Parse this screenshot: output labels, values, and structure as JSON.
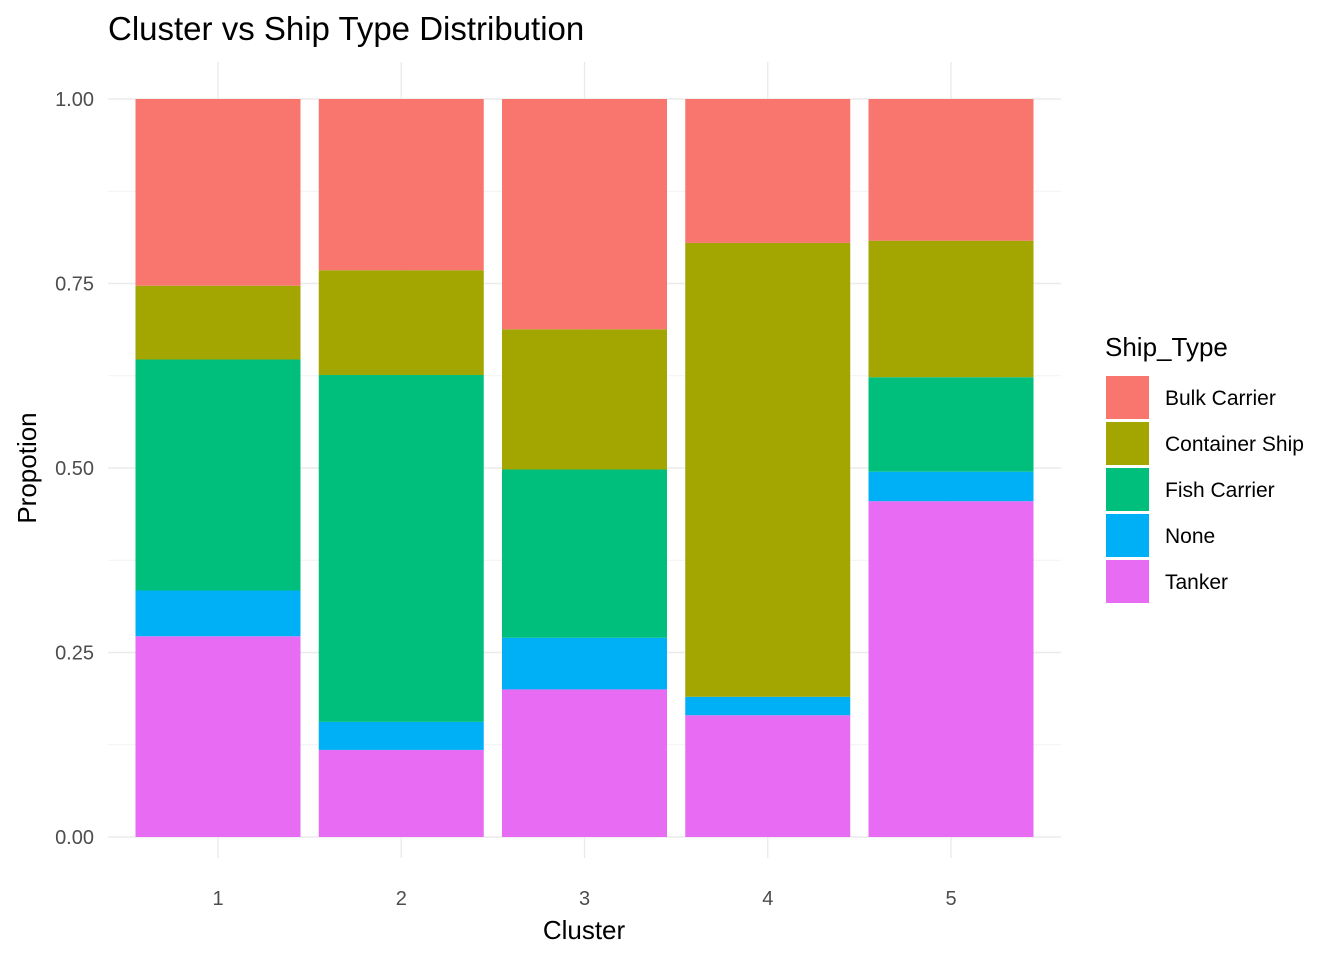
{
  "chart_data": {
    "type": "bar",
    "stacked": true,
    "title": "Cluster vs Ship Type Distribution",
    "xlabel": "Cluster",
    "ylabel": "Propotion",
    "categories": [
      "1",
      "2",
      "3",
      "4",
      "5"
    ],
    "ylim": [
      0,
      1
    ],
    "yticks": [
      "0.00",
      "0.25",
      "0.50",
      "0.75",
      "1.00"
    ],
    "grid": true,
    "legend": {
      "title": "Ship_Type",
      "placement": "right"
    },
    "series": [
      {
        "name": "Tanker",
        "color": "#E76BF3",
        "values": [
          0.272,
          0.118,
          0.2,
          0.165,
          0.455
        ]
      },
      {
        "name": "None",
        "color": "#00B0F6",
        "values": [
          0.062,
          0.038,
          0.07,
          0.025,
          0.04
        ]
      },
      {
        "name": "Fish Carrier",
        "color": "#00BF7D",
        "values": [
          0.313,
          0.47,
          0.228,
          0.0,
          0.128
        ]
      },
      {
        "name": "Container Ship",
        "color": "#A3A500",
        "values": [
          0.1,
          0.142,
          0.19,
          0.615,
          0.185
        ]
      },
      {
        "name": "Bulk Carrier",
        "color": "#F8766D",
        "values": [
          0.253,
          0.232,
          0.312,
          0.195,
          0.192
        ]
      }
    ],
    "legend_order": [
      "Bulk Carrier",
      "Container Ship",
      "Fish Carrier",
      "None",
      "Tanker"
    ]
  }
}
